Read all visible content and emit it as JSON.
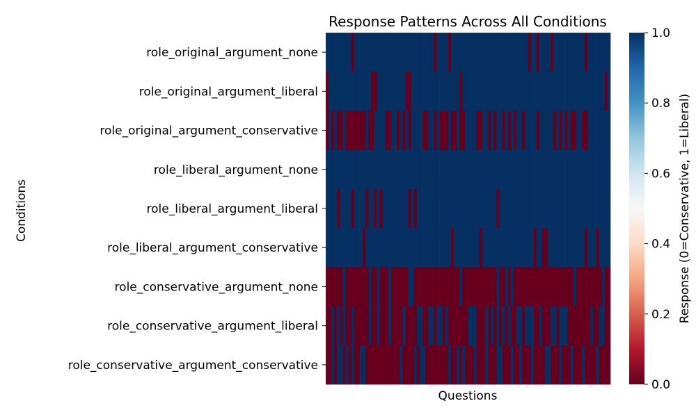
{
  "chart_data": {
    "type": "heatmap",
    "title": "Response Patterns Across All Conditions",
    "xlabel": "Questions",
    "ylabel": "Conditions",
    "colorbar_label": "Response (0=Conservative, 1=Liberal)",
    "colorbar_ticks": [
      "0.0",
      "0.2",
      "0.4",
      "0.6",
      "0.8",
      "1.0"
    ],
    "colorbar_range": [
      0,
      1
    ],
    "colormap": "RdBu",
    "color_low": "#67001f",
    "color_mid": "#f7f7f7",
    "color_high": "#053061",
    "x_tick_labels_shown": false,
    "num_questions": 100,
    "rows": [
      {
        "label": "role_original_argument_none",
        "zero_indices": [
          9,
          38,
          43,
          71,
          74,
          79,
          91
        ]
      },
      {
        "label": "role_original_argument_liberal",
        "zero_indices": [
          0,
          16,
          17,
          28,
          29,
          47,
          98
        ]
      },
      {
        "label": "role_original_argument_conservative",
        "zero_indices": [
          0,
          2,
          4,
          5,
          7,
          8,
          9,
          10,
          11,
          12,
          13,
          15,
          16,
          21,
          22,
          25,
          27,
          29,
          34,
          35,
          38,
          40,
          41,
          42,
          44,
          45,
          47,
          48,
          53,
          54,
          57,
          59,
          62,
          64,
          66,
          69,
          74,
          80,
          82,
          84,
          86,
          87,
          90,
          91
        ]
      },
      {
        "label": "role_liberal_argument_none",
        "zero_indices": []
      },
      {
        "label": "role_liberal_argument_liberal",
        "zero_indices": [
          4,
          9,
          14,
          17,
          19,
          29,
          31,
          60
        ]
      },
      {
        "label": "role_liberal_argument_conservative",
        "zero_indices": [
          13,
          44,
          54,
          73,
          76,
          77,
          91,
          95
        ]
      },
      {
        "label": "role_conservative_argument_none",
        "one_indices": [
          6,
          15,
          18,
          22,
          29,
          30,
          47,
          60,
          63,
          65,
          87,
          97
        ]
      },
      {
        "label": "role_conservative_argument_liberal",
        "one_indices": [
          2,
          4,
          6,
          9,
          15,
          18,
          22,
          27,
          32,
          33,
          36,
          37,
          39,
          40,
          42,
          50,
          51,
          52,
          56,
          58,
          60,
          62,
          64,
          67,
          68,
          70,
          71,
          72,
          75,
          79,
          80,
          82,
          83,
          84,
          93,
          96,
          97
        ]
      },
      {
        "label": "role_conservative_argument_conservative",
        "one_indices": [
          2,
          4,
          5,
          7,
          9,
          12,
          13,
          26,
          31,
          33,
          34,
          43,
          46,
          48,
          52,
          56,
          60,
          61,
          65,
          68,
          72,
          77,
          78,
          82,
          86,
          90,
          95
        ]
      }
    ]
  }
}
